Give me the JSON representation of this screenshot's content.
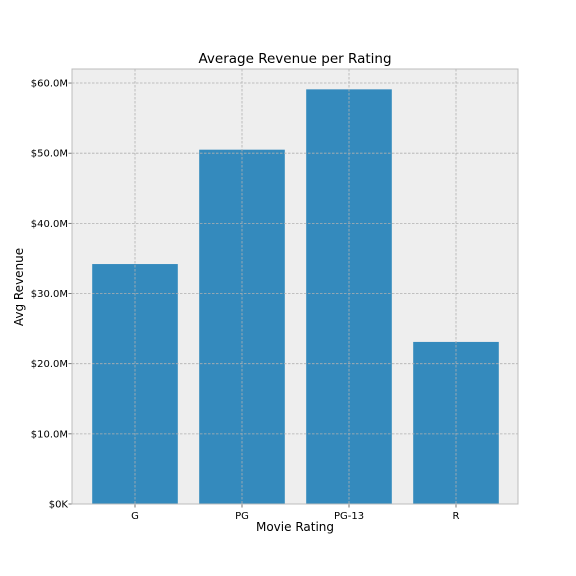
{
  "chart_data": {
    "type": "bar",
    "title": "Average Revenue per Rating",
    "xlabel": "Movie Rating",
    "ylabel": "Avg Revenue",
    "categories": [
      "G",
      "PG",
      "PG-13",
      "R"
    ],
    "values": [
      34200000,
      50500000,
      59100000,
      23100000
    ],
    "ylim": [
      0,
      62000000
    ],
    "yticks": [
      0,
      10000000,
      20000000,
      30000000,
      40000000,
      50000000,
      60000000
    ],
    "ytick_labels": [
      "$0K",
      "$10.0M",
      "$20.0M",
      "$30.0M",
      "$40.0M",
      "$50.0M",
      "$60.0M"
    ],
    "grid": true,
    "colors": {
      "bar": "#348abd",
      "plot_background": "#eeeeee"
    }
  }
}
